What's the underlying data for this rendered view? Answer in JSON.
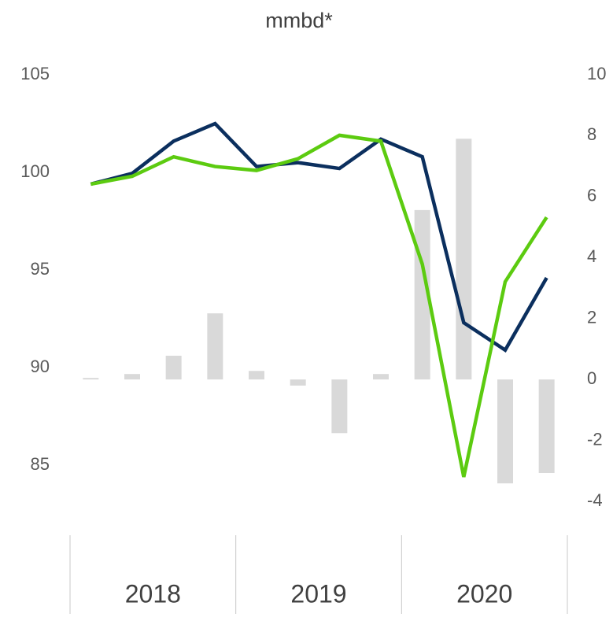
{
  "chart_data": {
    "type": "bar-line",
    "title": "mmbd*",
    "categories": [
      null,
      null,
      null,
      null,
      null,
      null,
      null,
      null,
      null,
      null,
      null,
      null
    ],
    "groups": [
      "2018",
      "2019",
      "2020"
    ],
    "series": [
      {
        "type": "bar",
        "axis": "y2",
        "color": "#d9d9d9",
        "values": [
          0.05,
          0.18,
          0.78,
          2.17,
          0.28,
          -0.2,
          -1.76,
          0.18,
          5.56,
          7.9,
          -3.41,
          -3.07
        ]
      },
      {
        "type": "line",
        "color": "#0b2f5e",
        "values": [
          99.4,
          99.95,
          101.6,
          102.5,
          100.3,
          100.5,
          100.2,
          101.7,
          100.8,
          92.3,
          90.9,
          94.6
        ]
      },
      {
        "type": "line",
        "color": "#5ccb10",
        "values": [
          99.4,
          99.8,
          100.8,
          100.3,
          100.1,
          100.7,
          101.9,
          101.6,
          95.3,
          84.4,
          94.4,
          97.7
        ]
      }
    ],
    "ylim": [
      83.15,
      105
    ],
    "yticks": [
      85,
      90,
      95,
      100,
      105
    ],
    "y2lim": [
      -4,
      10
    ],
    "y2ticks": [
      -4,
      -2,
      0,
      2,
      4,
      6,
      8,
      10
    ],
    "grid": false
  }
}
